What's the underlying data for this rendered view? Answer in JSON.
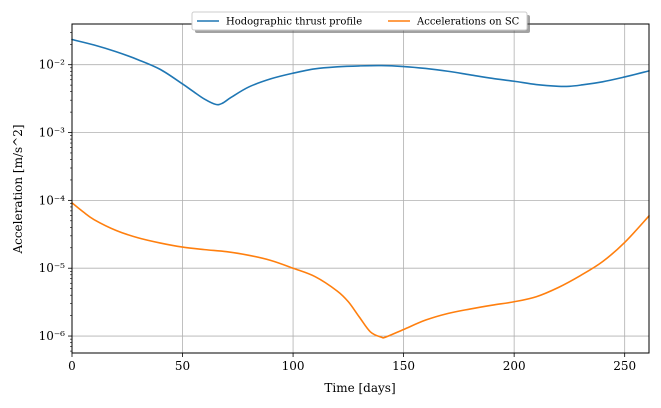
{
  "chart_data": {
    "type": "line",
    "title": "",
    "xlabel": "Time [days]",
    "ylabel": "Acceleration [m/s^2]",
    "xlim": [
      0,
      261
    ],
    "ylim_log10": [
      -6.25,
      -1.4
    ],
    "yscale": "log",
    "grid": true,
    "legend_position": "top-center",
    "x_ticks": [
      0,
      50,
      100,
      150,
      200,
      250
    ],
    "x_tick_labels": [
      "0",
      "50",
      "100",
      "150",
      "200",
      "250"
    ],
    "y_ticks_log10": [
      -6,
      -5,
      -4,
      -3,
      -2
    ],
    "y_tick_labels": [
      "10⁻⁶",
      "10⁻⁵",
      "10⁻⁴",
      "10⁻³",
      "10⁻²"
    ],
    "series": [
      {
        "name": "Hodographic thrust profile",
        "color": "#1f77b4",
        "x": [
          0,
          10,
          20,
          30,
          40,
          50,
          55,
          60,
          65,
          68,
          72,
          80,
          90,
          100,
          110,
          120,
          130,
          140,
          150,
          160,
          170,
          180,
          190,
          200,
          210,
          220,
          225,
          230,
          240,
          250,
          261
        ],
        "y": [
          0.0235,
          0.0195,
          0.0155,
          0.0118,
          0.0085,
          0.0052,
          0.004,
          0.0031,
          0.0026,
          0.0027,
          0.0033,
          0.0047,
          0.0062,
          0.0075,
          0.0087,
          0.0093,
          0.0096,
          0.0097,
          0.0094,
          0.0088,
          0.008,
          0.0071,
          0.0063,
          0.0057,
          0.0051,
          0.0048,
          0.0048,
          0.005,
          0.0056,
          0.0066,
          0.0081
        ]
      },
      {
        "name": "Accelerations on SC",
        "color": "#ff7f0e",
        "x": [
          0,
          5,
          10,
          20,
          30,
          40,
          50,
          60,
          70,
          80,
          90,
          100,
          110,
          120,
          125,
          130,
          135,
          140,
          142,
          150,
          160,
          170,
          180,
          190,
          200,
          210,
          220,
          230,
          240,
          250,
          261
        ],
        "y": [
          9.2e-05,
          6.8e-05,
          5.2e-05,
          3.6e-05,
          2.8e-05,
          2.35e-05,
          2.05e-05,
          1.88e-05,
          1.75e-05,
          1.55e-05,
          1.3e-05,
          1e-05,
          7.5e-06,
          4.6e-06,
          3.2e-06,
          1.9e-06,
          1.15e-06,
          9.6e-07,
          9.7e-07,
          1.25e-06,
          1.72e-06,
          2.15e-06,
          2.5e-06,
          2.85e-06,
          3.2e-06,
          3.8e-06,
          5.2e-06,
          7.8e-06,
          1.25e-05,
          2.4e-05,
          5.9e-05
        ]
      }
    ]
  }
}
